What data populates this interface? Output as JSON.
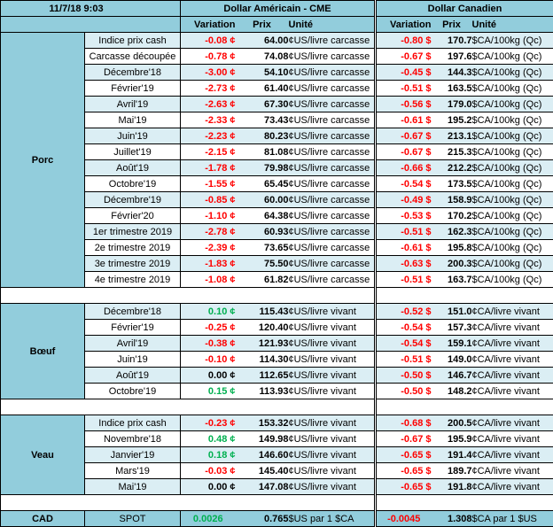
{
  "header": {
    "datetime": "11/7/18 9:03",
    "usd_title": "Dollar Américain - CME",
    "cad_title": "Dollar Canadien",
    "col_variation": "Variation",
    "col_prix": "Prix",
    "col_unite": "Unité"
  },
  "sections": {
    "porc": "Porc",
    "boeuf": "Bœuf",
    "veau": "Veau"
  },
  "colors": {
    "negative": "#ff0000",
    "positive": "#00b050",
    "header_bg": "#92cddc",
    "alt_row_bg": "#dbeef4"
  },
  "porc_rows": [
    {
      "label": "Indice prix cash",
      "usd_var": "-0.08 ¢",
      "usd_prix": "64.00",
      "usd_unit": "¢US/livre carcasse",
      "cad_var": "-0.80 $",
      "cad_prix": "170.7",
      "cad_unit": "$CA/100kg (Qc)"
    },
    {
      "label": "Carcasse découpée",
      "usd_var": "-0.78 ¢",
      "usd_prix": "74.08",
      "usd_unit": "¢US/livre carcasse",
      "cad_var": "-0.67 $",
      "cad_prix": "197.6",
      "cad_unit": "$CA/100kg (Qc)"
    },
    {
      "label": "Décembre'18",
      "usd_var": "-3.00 ¢",
      "usd_prix": "54.10",
      "usd_unit": "¢US/livre carcasse",
      "cad_var": "-0.45 $",
      "cad_prix": "144.3",
      "cad_unit": "$CA/100kg (Qc)"
    },
    {
      "label": "Février'19",
      "usd_var": "-2.73 ¢",
      "usd_prix": "61.40",
      "usd_unit": "¢US/livre carcasse",
      "cad_var": "-0.51 $",
      "cad_prix": "163.5",
      "cad_unit": "$CA/100kg (Qc)"
    },
    {
      "label": "Avril'19",
      "usd_var": "-2.63 ¢",
      "usd_prix": "67.30",
      "usd_unit": "¢US/livre carcasse",
      "cad_var": "-0.56 $",
      "cad_prix": "179.0",
      "cad_unit": "$CA/100kg (Qc)"
    },
    {
      "label": "Mai'19",
      "usd_var": "-2.33 ¢",
      "usd_prix": "73.43",
      "usd_unit": "¢US/livre carcasse",
      "cad_var": "-0.61 $",
      "cad_prix": "195.2",
      "cad_unit": "$CA/100kg (Qc)"
    },
    {
      "label": "Juin'19",
      "usd_var": "-2.23 ¢",
      "usd_prix": "80.23",
      "usd_unit": "¢US/livre carcasse",
      "cad_var": "-0.67 $",
      "cad_prix": "213.1",
      "cad_unit": "$CA/100kg (Qc)"
    },
    {
      "label": "Juillet'19",
      "usd_var": "-2.15 ¢",
      "usd_prix": "81.08",
      "usd_unit": "¢US/livre carcasse",
      "cad_var": "-0.67 $",
      "cad_prix": "215.3",
      "cad_unit": "$CA/100kg (Qc)"
    },
    {
      "label": "Août'19",
      "usd_var": "-1.78 ¢",
      "usd_prix": "79.98",
      "usd_unit": "¢US/livre carcasse",
      "cad_var": "-0.66 $",
      "cad_prix": "212.2",
      "cad_unit": "$CA/100kg (Qc)"
    },
    {
      "label": "Octobre'19",
      "usd_var": "-1.55 ¢",
      "usd_prix": "65.45",
      "usd_unit": "¢US/livre carcasse",
      "cad_var": "-0.54 $",
      "cad_prix": "173.5",
      "cad_unit": "$CA/100kg (Qc)"
    },
    {
      "label": "Décembre'19",
      "usd_var": "-0.85 ¢",
      "usd_prix": "60.00",
      "usd_unit": "¢US/livre carcasse",
      "cad_var": "-0.49 $",
      "cad_prix": "158.9",
      "cad_unit": "$CA/100kg (Qc)"
    },
    {
      "label": "Février'20",
      "usd_var": "-1.10 ¢",
      "usd_prix": "64.38",
      "usd_unit": "¢US/livre carcasse",
      "cad_var": "-0.53 $",
      "cad_prix": "170.2",
      "cad_unit": "$CA/100kg (Qc)"
    },
    {
      "label": "1er trimestre 2019",
      "usd_var": "-2.78 ¢",
      "usd_prix": "60.93",
      "usd_unit": "¢US/livre carcasse",
      "cad_var": "-0.51 $",
      "cad_prix": "162.3",
      "cad_unit": "$CA/100kg (Qc)"
    },
    {
      "label": "2e trimestre 2019",
      "usd_var": "-2.39 ¢",
      "usd_prix": "73.65",
      "usd_unit": "¢US/livre carcasse",
      "cad_var": "-0.61 $",
      "cad_prix": "195.8",
      "cad_unit": "$CA/100kg (Qc)"
    },
    {
      "label": "3e trimestre 2019",
      "usd_var": "-1.83 ¢",
      "usd_prix": "75.50",
      "usd_unit": "¢US/livre carcasse",
      "cad_var": "-0.63 $",
      "cad_prix": "200.3",
      "cad_unit": "$CA/100kg (Qc)"
    },
    {
      "label": "4e trimestre 2019",
      "usd_var": "-1.08 ¢",
      "usd_prix": "61.82",
      "usd_unit": "¢US/livre carcasse",
      "cad_var": "-0.51 $",
      "cad_prix": "163.7",
      "cad_unit": "$CA/100kg (Qc)"
    }
  ],
  "boeuf_rows": [
    {
      "label": "Décembre'18",
      "usd_var": "0.10 ¢",
      "usd_sign": "pos",
      "usd_prix": "115.43",
      "usd_unit": "¢US/livre vivant",
      "cad_var": "-0.52 $",
      "cad_prix": "151.0",
      "cad_unit": "¢CA/livre vivant"
    },
    {
      "label": "Février'19",
      "usd_var": "-0.25 ¢",
      "usd_sign": "neg",
      "usd_prix": "120.40",
      "usd_unit": "¢US/livre vivant",
      "cad_var": "-0.54 $",
      "cad_prix": "157.3",
      "cad_unit": "¢CA/livre vivant"
    },
    {
      "label": "Avril'19",
      "usd_var": "-0.38 ¢",
      "usd_sign": "neg",
      "usd_prix": "121.93",
      "usd_unit": "¢US/livre vivant",
      "cad_var": "-0.54 $",
      "cad_prix": "159.1",
      "cad_unit": "¢CA/livre vivant"
    },
    {
      "label": "Juin'19",
      "usd_var": "-0.10 ¢",
      "usd_sign": "neg",
      "usd_prix": "114.30",
      "usd_unit": "¢US/livre vivant",
      "cad_var": "-0.51 $",
      "cad_prix": "149.0",
      "cad_unit": "¢CA/livre vivant"
    },
    {
      "label": "Août'19",
      "usd_var": "0.00 ¢",
      "usd_sign": "zero",
      "usd_prix": "112.65",
      "usd_unit": "¢US/livre vivant",
      "cad_var": "-0.50 $",
      "cad_prix": "146.7",
      "cad_unit": "¢CA/livre vivant"
    },
    {
      "label": "Octobre'19",
      "usd_var": "0.15 ¢",
      "usd_sign": "pos",
      "usd_prix": "113.93",
      "usd_unit": "¢US/livre vivant",
      "cad_var": "-0.50 $",
      "cad_prix": "148.2",
      "cad_unit": "¢CA/livre vivant"
    }
  ],
  "veau_rows": [
    {
      "label": "Indice prix cash",
      "usd_var": "-0.23 ¢",
      "usd_sign": "neg",
      "usd_prix": "153.32",
      "usd_unit": "¢US/livre vivant",
      "cad_var": "-0.68 $",
      "cad_prix": "200.5",
      "cad_unit": "¢CA/livre vivant"
    },
    {
      "label": "Novembre'18",
      "usd_var": "0.48 ¢",
      "usd_sign": "pos",
      "usd_prix": "149.98",
      "usd_unit": "¢US/livre vivant",
      "cad_var": "-0.67 $",
      "cad_prix": "195.9",
      "cad_unit": "¢CA/livre vivant"
    },
    {
      "label": "Janvier'19",
      "usd_var": "0.18 ¢",
      "usd_sign": "pos",
      "usd_prix": "146.60",
      "usd_unit": "¢US/livre vivant",
      "cad_var": "-0.65 $",
      "cad_prix": "191.4",
      "cad_unit": "¢CA/livre vivant"
    },
    {
      "label": "Mars'19",
      "usd_var": "-0.03 ¢",
      "usd_sign": "neg",
      "usd_prix": "145.40",
      "usd_unit": "¢US/livre vivant",
      "cad_var": "-0.65 $",
      "cad_prix": "189.7",
      "cad_unit": "¢CA/livre vivant"
    },
    {
      "label": "Mai'19",
      "usd_var": "0.00 ¢",
      "usd_sign": "zero",
      "usd_prix": "147.08",
      "usd_unit": "¢US/livre vivant",
      "cad_var": "-0.65 $",
      "cad_prix": "191.8",
      "cad_unit": "¢CA/livre vivant"
    }
  ],
  "spot": {
    "section": "CAD",
    "label": "SPOT",
    "usd_var": "0.0026",
    "usd_prix": "0.765",
    "usd_unit": "$US par 1 $CA",
    "cad_var": "-0.0045",
    "cad_prix": "1.308",
    "cad_unit": "$CA par 1 $US"
  }
}
